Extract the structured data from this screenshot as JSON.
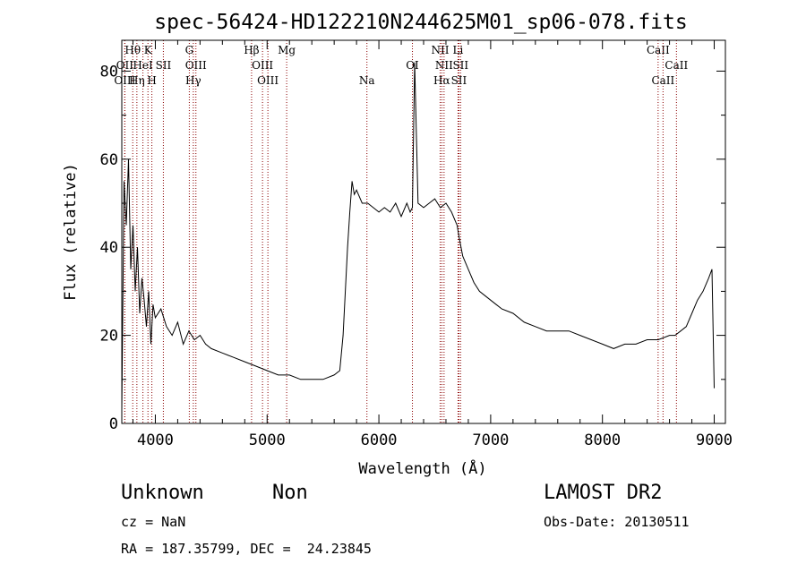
{
  "chart_data": {
    "type": "line",
    "title": "spec-56424-HD122210N244625M01_sp06-078.fits",
    "xlabel": "Wavelength (Å)",
    "ylabel": "Flux (relative)",
    "xlim": [
      3700,
      9100
    ],
    "ylim": [
      0,
      87
    ],
    "x_ticks": [
      4000,
      5000,
      6000,
      7000,
      8000,
      9000
    ],
    "y_ticks": [
      0,
      20,
      40,
      60,
      80
    ],
    "x_tick_labels": [
      "4000",
      "5000",
      "6000",
      "7000",
      "8000",
      "9000"
    ],
    "y_tick_labels": [
      "0",
      "20",
      "40",
      "60",
      "80"
    ],
    "line_color": "#000000",
    "marker_color": "#8b0000",
    "series": [
      {
        "x": [
          3700,
          3720,
          3740,
          3760,
          3780,
          3800,
          3820,
          3840,
          3860,
          3880,
          3900,
          3920,
          3940,
          3960,
          3980,
          4000,
          4050,
          4100,
          4150,
          4200,
          4250,
          4300,
          4350,
          4400,
          4450,
          4500,
          4600,
          4700,
          4800,
          4900,
          5000,
          5100,
          5200,
          5300,
          5400,
          5500,
          5600,
          5650,
          5680,
          5700,
          5720,
          5740,
          5760,
          5780,
          5800,
          5850,
          5900,
          5950,
          6000,
          6050,
          6100,
          6150,
          6200,
          6250,
          6280,
          6300,
          6320,
          6350,
          6400,
          6450,
          6500,
          6550,
          6600,
          6650,
          6700,
          6720,
          6750,
          6800,
          6850,
          6900,
          6950,
          7000,
          7050,
          7100,
          7200,
          7300,
          7400,
          7500,
          7600,
          7700,
          7800,
          7900,
          8000,
          8100,
          8200,
          8300,
          8400,
          8500,
          8600,
          8650,
          8700,
          8750,
          8800,
          8850,
          8900,
          8950,
          8980,
          9000
        ],
        "y": [
          3,
          55,
          45,
          60,
          35,
          45,
          30,
          40,
          25,
          33,
          28,
          22,
          30,
          18,
          27,
          24,
          26,
          22,
          20,
          23,
          18,
          21,
          19,
          20,
          18,
          17,
          16,
          15,
          14,
          13,
          12,
          11,
          11,
          10,
          10,
          10,
          11,
          12,
          20,
          30,
          40,
          48,
          55,
          52,
          53,
          50,
          50,
          49,
          48,
          49,
          48,
          50,
          47,
          50,
          48,
          49,
          82,
          50,
          49,
          50,
          51,
          49,
          50,
          48,
          45,
          42,
          38,
          35,
          32,
          30,
          29,
          28,
          27,
          26,
          25,
          23,
          22,
          21,
          21,
          21,
          20,
          19,
          18,
          17,
          18,
          18,
          19,
          19,
          20,
          20,
          21,
          22,
          25,
          28,
          30,
          33,
          35,
          8
        ]
      }
    ],
    "line_markers": [
      {
        "label": "Hθ",
        "x": 3798,
        "row": 0
      },
      {
        "label": "K",
        "x": 3934,
        "row": 0
      },
      {
        "label": "G",
        "x": 4304,
        "row": 0
      },
      {
        "label": "Hβ",
        "x": 4861,
        "row": 0
      },
      {
        "label": "Mg",
        "x": 5175,
        "row": 0
      },
      {
        "label": "NII",
        "x": 6548,
        "row": 0
      },
      {
        "label": "Li",
        "x": 6708,
        "row": 0
      },
      {
        "label": "CaII",
        "x": 8498,
        "row": 0
      },
      {
        "label": "OII",
        "x": 3727,
        "row": 1
      },
      {
        "label": "HeI",
        "x": 3889,
        "row": 1
      },
      {
        "label": "SII",
        "x": 4072,
        "row": 1
      },
      {
        "label": "OIII",
        "x": 4363,
        "row": 1
      },
      {
        "label": "OIII",
        "x": 4959,
        "row": 1
      },
      {
        "label": "OI",
        "x": 6300,
        "row": 1
      },
      {
        "label": "NII",
        "x": 6583,
        "row": 1
      },
      {
        "label": "SII",
        "x": 6731,
        "row": 1
      },
      {
        "label": "CaII",
        "x": 8662,
        "row": 1
      },
      {
        "label": "OIII",
        "x": 3727,
        "row": 2
      },
      {
        "label": "Hη",
        "x": 3835,
        "row": 2
      },
      {
        "label": "H",
        "x": 3969,
        "row": 2
      },
      {
        "label": "Hγ",
        "x": 4340,
        "row": 2
      },
      {
        "label": "OIII",
        "x": 5007,
        "row": 2
      },
      {
        "label": "Na",
        "x": 5893,
        "row": 2
      },
      {
        "label": "Hα",
        "x": 6563,
        "row": 2
      },
      {
        "label": "SII",
        "x": 6716,
        "row": 2
      },
      {
        "label": "CaII",
        "x": 8542,
        "row": 2
      }
    ]
  },
  "info": {
    "class": "Unknown",
    "subclass": "Non",
    "redshift": "cz = NaN",
    "coords": "RA = 187.35799, DEC =  24.23845",
    "survey": "LAMOST DR2",
    "obs_date": "Obs-Date: 20130511"
  }
}
